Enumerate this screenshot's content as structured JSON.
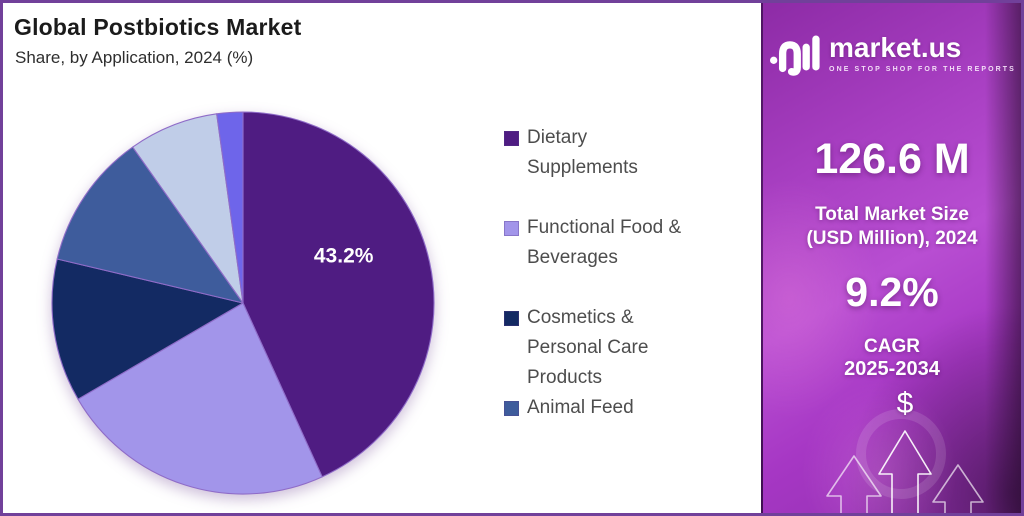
{
  "header": {
    "title": "Global Postbiotics Market",
    "subtitle": "Share, by Application, 2024 (%)"
  },
  "chart_data": {
    "type": "pie",
    "title": "Global Postbiotics Market",
    "subtitle": "Share, by Application, 2024 (%)",
    "unit": "%",
    "legend_position": "right",
    "slices": [
      {
        "label": "Dietary Supplements",
        "value": 43.2,
        "data_label": "43.2%",
        "color": "#4f1c82",
        "in_legend": true
      },
      {
        "label": "Functional Food & Beverages",
        "value": 23.4,
        "data_label": "",
        "color": "#a295ea",
        "in_legend": true
      },
      {
        "label": "Cosmetics & Personal Care Products",
        "value": 12.1,
        "data_label": "",
        "color": "#132a63",
        "in_legend": true
      },
      {
        "label": "Animal Feed",
        "value": 11.5,
        "data_label": "",
        "color": "#3e5c9c",
        "in_legend": true
      },
      {
        "label": "",
        "value": 7.6,
        "data_label": "",
        "color": "#c0cde8",
        "in_legend": false
      },
      {
        "label": "",
        "value": 2.2,
        "data_label": "",
        "color": "#6e65ea",
        "in_legend": false
      }
    ]
  },
  "sidebar": {
    "logo": {
      "brand": "market.us",
      "tagline": "ONE STOP SHOP FOR THE REPORTS"
    },
    "market_size_value": "126.6 M",
    "market_size_label": "Total Market Size (USD Million), 2024",
    "cagr_value": "9.2%",
    "cagr_label": "CAGR",
    "cagr_period": "2025-2034",
    "dollar_symbol": "$"
  },
  "colors": {
    "page_border": "#71409a",
    "sidebar_gradient_top": "#a83fc2",
    "sidebar_gradient_bright": "#b84ed2",
    "sidebar_gradient_bottom": "#9130ae",
    "title_text": "#1b1b1b",
    "legend_text": "#4d4d4d",
    "data_label_text": "#ffffff",
    "slice_stroke": "#8f6cc8"
  }
}
